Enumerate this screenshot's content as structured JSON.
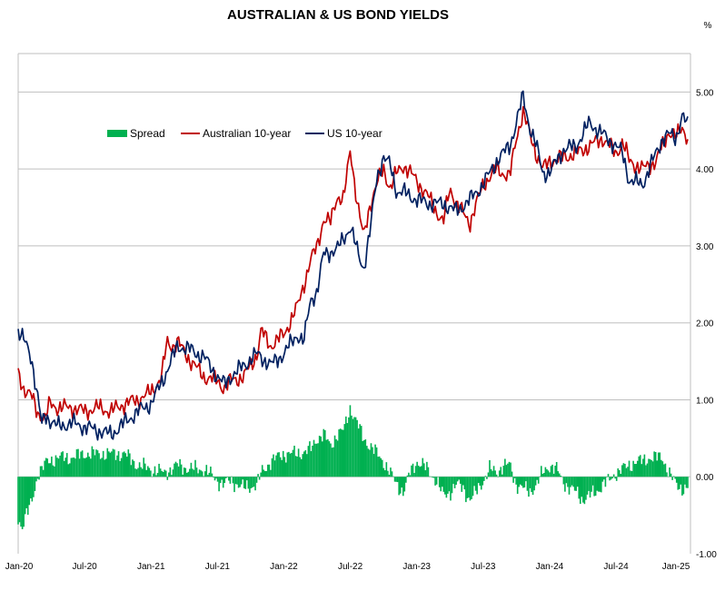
{
  "chart_data": {
    "type": "line",
    "title": "AUSTRALIAN & US BOND YIELDS",
    "unit": "%",
    "xlabel": "",
    "ylabel": "",
    "x_ticks": [
      "Jan-20",
      "Jul-20",
      "Jan-21",
      "Jul-21",
      "Jan-22",
      "Jul-22",
      "Jan-23",
      "Jul-23",
      "Jan-24",
      "Jul-24",
      "Jan-25"
    ],
    "xlim": [
      "Jan-20",
      "Jan-25"
    ],
    "y_ticks": [
      "5.00",
      "4.00",
      "3.00",
      "2.00",
      "1.00",
      "0.00",
      "-1.00"
    ],
    "ylim": [
      -1,
      5.5
    ],
    "grid": "horizontal",
    "legend": {
      "placement": "upper-left",
      "entries": [
        "Spread",
        "Australian 10-year",
        "US 10-year"
      ]
    },
    "colors": {
      "spread": "#00b050",
      "aus": "#c00000",
      "us": "#002060",
      "grid": "#bfbfbf"
    },
    "series": [
      {
        "name": "Australian 10-year",
        "kind": "line",
        "x": [
          2020.0,
          2020.04,
          2020.1,
          2020.14,
          2020.2,
          2020.24,
          2020.3,
          2020.4,
          2020.5,
          2020.6,
          2020.7,
          2020.8,
          2020.9,
          2021.0,
          2021.08,
          2021.12,
          2021.16,
          2021.2,
          2021.3,
          2021.4,
          2021.5,
          2021.55,
          2021.6,
          2021.7,
          2021.8,
          2021.83,
          2021.9,
          2022.0,
          2022.1,
          2022.2,
          2022.25,
          2022.3,
          2022.35,
          2022.4,
          2022.45,
          2022.5,
          2022.55,
          2022.6,
          2022.65,
          2022.7,
          2022.75,
          2022.8,
          2022.85,
          2022.9,
          2023.0,
          2023.1,
          2023.2,
          2023.25,
          2023.3,
          2023.4,
          2023.5,
          2023.6,
          2023.7,
          2023.75,
          2023.8,
          2023.85,
          2023.9,
          2023.95,
          2024.0,
          2024.1,
          2024.2,
          2024.3,
          2024.4,
          2024.5,
          2024.55,
          2024.6,
          2024.7,
          2024.8,
          2024.85,
          2024.9,
          2024.95,
          2025.0,
          2025.04
        ],
        "y": [
          1.35,
          1.15,
          1.05,
          0.85,
          0.75,
          0.95,
          0.9,
          0.9,
          0.85,
          0.9,
          0.85,
          0.95,
          1.0,
          1.1,
          1.3,
          1.75,
          1.7,
          1.75,
          1.5,
          1.3,
          1.25,
          1.15,
          1.25,
          1.3,
          1.6,
          1.9,
          1.7,
          1.85,
          2.2,
          2.8,
          3.0,
          3.35,
          3.3,
          3.65,
          3.6,
          4.25,
          3.6,
          3.1,
          3.55,
          3.8,
          4.0,
          3.75,
          3.95,
          4.05,
          3.85,
          3.6,
          3.3,
          3.75,
          3.55,
          3.3,
          3.8,
          4.0,
          3.9,
          4.4,
          4.75,
          4.45,
          4.2,
          4.0,
          4.1,
          4.15,
          4.2,
          4.3,
          4.4,
          4.2,
          4.35,
          4.1,
          4.0,
          4.1,
          4.3,
          4.5,
          4.4,
          4.55,
          4.4
        ]
      },
      {
        "name": "US 10-year",
        "kind": "line",
        "x": [
          2020.0,
          2020.05,
          2020.1,
          2020.15,
          2020.18,
          2020.2,
          2020.3,
          2020.4,
          2020.5,
          2020.6,
          2020.7,
          2020.8,
          2020.9,
          2021.0,
          2021.1,
          2021.2,
          2021.3,
          2021.4,
          2021.5,
          2021.55,
          2021.6,
          2021.7,
          2021.8,
          2021.9,
          2022.0,
          2022.1,
          2022.15,
          2022.2,
          2022.25,
          2022.3,
          2022.4,
          2022.5,
          2022.55,
          2022.6,
          2022.65,
          2022.7,
          2022.75,
          2022.8,
          2022.85,
          2022.9,
          2023.0,
          2023.1,
          2023.2,
          2023.3,
          2023.4,
          2023.5,
          2023.6,
          2023.7,
          2023.75,
          2023.8,
          2023.85,
          2023.9,
          2023.95,
          2024.0,
          2024.1,
          2024.2,
          2024.3,
          2024.4,
          2024.5,
          2024.55,
          2024.6,
          2024.7,
          2024.8,
          2024.85,
          2024.9,
          2024.95,
          2025.0,
          2025.04
        ],
        "y": [
          1.9,
          1.75,
          1.55,
          1.0,
          0.65,
          0.8,
          0.65,
          0.7,
          0.65,
          0.6,
          0.55,
          0.7,
          0.85,
          0.95,
          1.3,
          1.7,
          1.65,
          1.55,
          1.3,
          1.2,
          1.3,
          1.45,
          1.6,
          1.45,
          1.6,
          1.85,
          1.75,
          2.3,
          2.4,
          2.9,
          2.95,
          3.25,
          2.95,
          2.7,
          3.2,
          3.9,
          4.15,
          4.05,
          3.7,
          3.7,
          3.6,
          3.55,
          3.55,
          3.45,
          3.6,
          3.8,
          4.1,
          4.3,
          4.6,
          4.95,
          4.55,
          4.3,
          3.95,
          3.95,
          4.25,
          4.3,
          4.6,
          4.45,
          4.3,
          4.2,
          3.85,
          3.8,
          4.2,
          4.4,
          4.45,
          4.4,
          4.7,
          4.55
        ]
      },
      {
        "name": "Spread",
        "kind": "bar",
        "x": [
          2020.0,
          2020.03,
          2020.06,
          2020.09,
          2020.12,
          2020.15,
          2020.18,
          2020.22,
          2020.3,
          2020.4,
          2020.5,
          2020.6,
          2020.7,
          2020.8,
          2020.9,
          2021.0,
          2021.1,
          2021.15,
          2021.2,
          2021.3,
          2021.4,
          2021.5,
          2021.55,
          2021.6,
          2021.7,
          2021.8,
          2021.83,
          2021.9,
          2022.0,
          2022.1,
          2022.2,
          2022.25,
          2022.3,
          2022.35,
          2022.4,
          2022.45,
          2022.5,
          2022.55,
          2022.6,
          2022.65,
          2022.7,
          2022.75,
          2022.8,
          2022.85,
          2022.9,
          2022.95,
          2023.0,
          2023.05,
          2023.1,
          2023.15,
          2023.2,
          2023.25,
          2023.3,
          2023.35,
          2023.4,
          2023.45,
          2023.5,
          2023.55,
          2023.6,
          2023.65,
          2023.7,
          2023.75,
          2023.8,
          2023.85,
          2023.9,
          2023.95,
          2024.0,
          2024.05,
          2024.1,
          2024.15,
          2024.2,
          2024.25,
          2024.3,
          2024.35,
          2024.4,
          2024.45,
          2024.5,
          2024.55,
          2024.6,
          2024.65,
          2024.7,
          2024.75,
          2024.8,
          2024.85,
          2024.9,
          2024.95,
          2025.0,
          2025.04
        ],
        "y": [
          -0.55,
          -0.65,
          -0.5,
          -0.4,
          -0.2,
          0.05,
          0.1,
          0.2,
          0.25,
          0.25,
          0.3,
          0.3,
          0.3,
          0.3,
          0.15,
          0.1,
          0.05,
          0.1,
          0.15,
          0.1,
          0.1,
          -0.05,
          -0.1,
          -0.05,
          -0.15,
          -0.1,
          0.05,
          0.2,
          0.3,
          0.3,
          0.35,
          0.5,
          0.55,
          0.4,
          0.55,
          0.6,
          0.9,
          0.7,
          0.5,
          0.4,
          0.3,
          0.2,
          0.05,
          -0.1,
          -0.2,
          0.05,
          0.2,
          0.15,
          0.05,
          -0.05,
          -0.25,
          -0.2,
          -0.1,
          -0.15,
          -0.3,
          -0.2,
          -0.05,
          0.1,
          0.05,
          0.15,
          0.15,
          -0.1,
          -0.15,
          -0.2,
          -0.1,
          0.05,
          0.15,
          0.1,
          -0.05,
          -0.15,
          -0.2,
          -0.3,
          -0.25,
          -0.2,
          -0.1,
          -0.05,
          0.05,
          0.1,
          0.15,
          0.2,
          0.2,
          0.25,
          0.25,
          0.25,
          0.05,
          -0.1,
          -0.15,
          -0.15
        ]
      }
    ]
  }
}
